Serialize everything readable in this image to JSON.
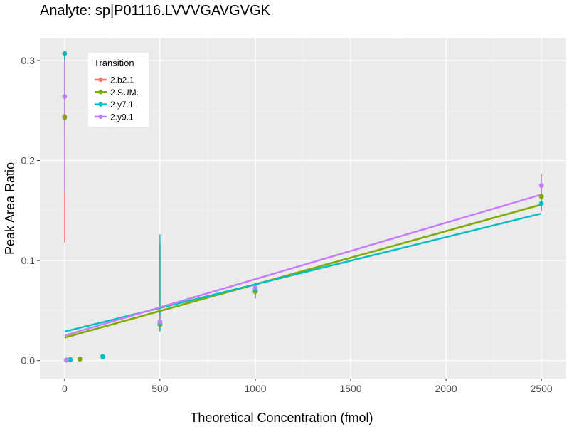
{
  "chart_data": {
    "type": "scatter",
    "title": "Analyte: sp|P01116.LVVVGAVGVGK",
    "xlabel": "Theoretical Concentration (fmol)",
    "ylabel": "Peak Area Ratio",
    "xlim": [
      -130,
      2630
    ],
    "ylim": [
      -0.018,
      0.322
    ],
    "x_ticks": [
      0,
      500,
      1000,
      1500,
      2000,
      2500
    ],
    "x_tick_labels": [
      "0",
      "500",
      "1000",
      "1500",
      "2000",
      "2500"
    ],
    "y_ticks": [
      0.0,
      0.1,
      0.2,
      0.3
    ],
    "y_tick_labels": [
      "0.0",
      "0.1",
      "0.2",
      "0.3"
    ],
    "grid": true,
    "legend": {
      "title": "Transition",
      "placement": "top-left"
    },
    "series": [
      {
        "name": "2.b2.1",
        "color": "#F8766D",
        "points": [
          {
            "x": 0,
            "y": 0.244,
            "lo": 0.118,
            "hi": 0.305
          },
          {
            "x": 10,
            "y": 0.0005,
            "lo": 0.0,
            "hi": 0.001
          },
          {
            "x": 30,
            "y": 0.001,
            "lo": 0.0,
            "hi": 0.002
          },
          {
            "x": 80,
            "y": 0.0015,
            "lo": 0.001,
            "hi": 0.002
          },
          {
            "x": 200,
            "y": 0.004,
            "lo": 0.003,
            "hi": 0.005
          },
          {
            "x": 500,
            "y": 0.036,
            "lo": 0.03,
            "hi": 0.115
          },
          {
            "x": 1000,
            "y": 0.069,
            "lo": 0.065,
            "hi": 0.074
          },
          {
            "x": 2500,
            "y": 0.164,
            "lo": 0.155,
            "hi": 0.172
          }
        ],
        "fit": {
          "x": [
            0,
            2500
          ],
          "y": [
            0.023,
            0.156
          ]
        }
      },
      {
        "name": "2.SUM.",
        "color": "#7CAE00",
        "points": [
          {
            "x": 0,
            "y": 0.243,
            "lo": 0.225,
            "hi": 0.305
          },
          {
            "x": 10,
            "y": 0.0005,
            "lo": 0.0,
            "hi": 0.001
          },
          {
            "x": 30,
            "y": 0.001,
            "lo": 0.0,
            "hi": 0.002
          },
          {
            "x": 80,
            "y": 0.0015,
            "lo": 0.001,
            "hi": 0.002
          },
          {
            "x": 200,
            "y": 0.004,
            "lo": 0.003,
            "hi": 0.005
          },
          {
            "x": 500,
            "y": 0.036,
            "lo": 0.031,
            "hi": 0.117
          },
          {
            "x": 1000,
            "y": 0.069,
            "lo": 0.065,
            "hi": 0.074
          },
          {
            "x": 2500,
            "y": 0.164,
            "lo": 0.156,
            "hi": 0.172
          }
        ],
        "fit": {
          "x": [
            0,
            2500
          ],
          "y": [
            0.023,
            0.156
          ]
        }
      },
      {
        "name": "2.y7.1",
        "color": "#00BFC4",
        "points": [
          {
            "x": 0,
            "y": 0.307,
            "lo": 0.245,
            "hi": 0.307
          },
          {
            "x": 10,
            "y": 0.0005,
            "lo": 0.0,
            "hi": 0.001
          },
          {
            "x": 30,
            "y": 0.001,
            "lo": 0.0,
            "hi": 0.002
          },
          {
            "x": 200,
            "y": 0.004,
            "lo": 0.003,
            "hi": 0.005
          },
          {
            "x": 500,
            "y": 0.038,
            "lo": 0.029,
            "hi": 0.126
          },
          {
            "x": 1000,
            "y": 0.071,
            "lo": 0.062,
            "hi": 0.078
          },
          {
            "x": 2500,
            "y": 0.157,
            "lo": 0.149,
            "hi": 0.166
          }
        ],
        "fit": {
          "x": [
            0,
            2500
          ],
          "y": [
            0.029,
            0.147
          ]
        }
      },
      {
        "name": "2.y9.1",
        "color": "#C77CFF",
        "points": [
          {
            "x": 0,
            "y": 0.264,
            "lo": 0.17,
            "hi": 0.3
          },
          {
            "x": 10,
            "y": 0.0005,
            "lo": 0.0,
            "hi": 0.001
          },
          {
            "x": 500,
            "y": 0.039,
            "lo": 0.035,
            "hi": 0.045
          },
          {
            "x": 1000,
            "y": 0.073,
            "lo": 0.068,
            "hi": 0.078
          },
          {
            "x": 2500,
            "y": 0.175,
            "lo": 0.162,
            "hi": 0.187
          }
        ],
        "fit": {
          "x": [
            0,
            2500
          ],
          "y": [
            0.025,
            0.166
          ]
        }
      }
    ]
  }
}
